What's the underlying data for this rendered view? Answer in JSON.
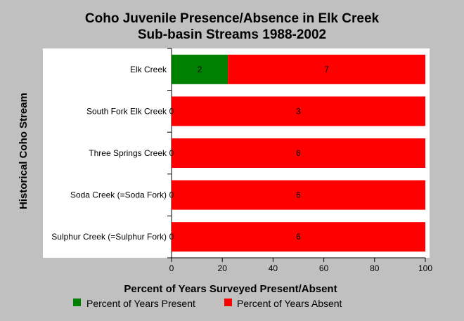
{
  "chart_data": {
    "type": "bar",
    "orientation": "horizontal",
    "stacked": true,
    "title": "Coho Juvenile Presence/Absence in Elk Creek Sub-basin Streams 1988-2002",
    "title_lines": [
      "Coho Juvenile Presence/Absence in Elk Creek",
      "Sub-basin Streams 1988-2002"
    ],
    "xlabel": "Percent of Years Surveyed Present/Absent",
    "ylabel": "Historical Coho Stream",
    "xlim": [
      0,
      100
    ],
    "xticks": [
      0,
      20,
      40,
      60,
      80,
      100
    ],
    "grid": false,
    "legend_position": "bottom",
    "categories": [
      "Elk Creek",
      "South Fork Elk Creek",
      "Three Springs Creek",
      "Soda Creek (=Soda Fork)",
      "Sulphur Creek (=Sulphur Fork)"
    ],
    "series": [
      {
        "name": "Percent of Years Present",
        "color": "#008000",
        "values": [
          22.2,
          0,
          0,
          0,
          0
        ],
        "labels": [
          "2",
          "0",
          "0",
          "0",
          "0"
        ]
      },
      {
        "name": "Percent of Years Absent",
        "color": "#ff0000",
        "values": [
          77.8,
          100,
          100,
          100,
          100
        ],
        "labels": [
          "7",
          "3",
          "6",
          "6",
          "6"
        ]
      }
    ]
  }
}
